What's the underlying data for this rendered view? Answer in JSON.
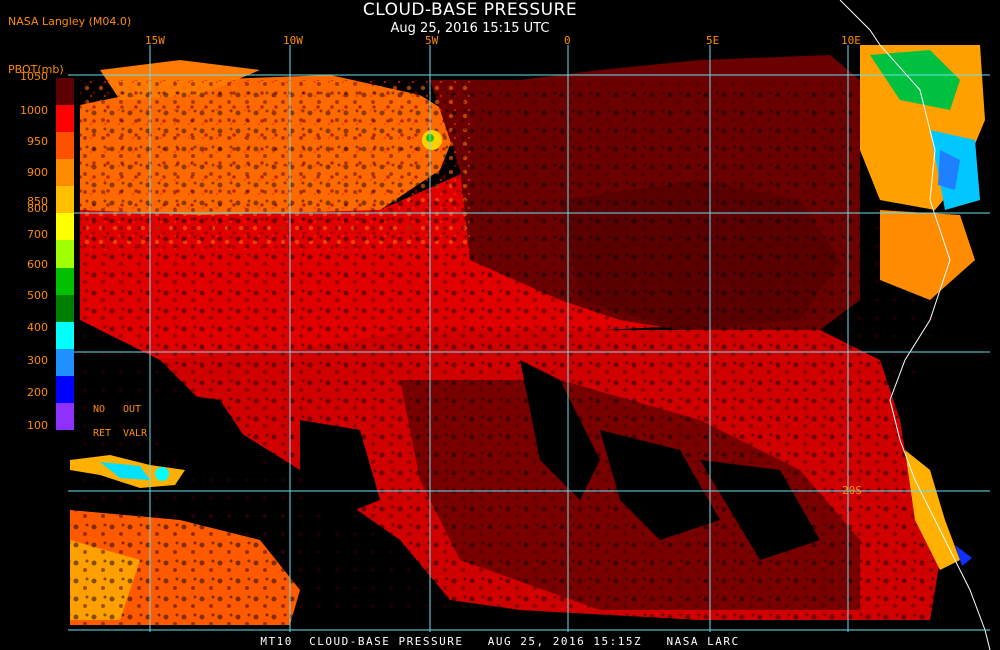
{
  "header": {
    "title": "CLOUD-BASE PRESSURE",
    "subtitle": "Aug 25, 2016 15:15 UTC",
    "producer": "NASA Langley (M04.0)"
  },
  "map": {
    "lon_labels": [
      "15W",
      "10W",
      "5W",
      "0",
      "5E",
      "10E"
    ],
    "lat_labels": [
      "20S"
    ],
    "region": "South Atlantic / Southwest Africa coast"
  },
  "legend": {
    "title": "PBOT(mb)",
    "ticks": [
      "1050",
      "1000",
      "950",
      "900",
      "850",
      "800",
      "700",
      "600",
      "500",
      "400",
      "300",
      "200",
      "100"
    ],
    "colors": [
      "#5a0000",
      "#ff0000",
      "#ff5000",
      "#ff8c00",
      "#ffbf00",
      "#ffff00",
      "#a0ff00",
      "#00c000",
      "#008000",
      "#00ffff",
      "#1e90ff",
      "#0000ff",
      "#9030ff"
    ],
    "notes": {
      "no": "NO",
      "out": "OUT",
      "ret": "RET",
      "valr": "VALR"
    }
  },
  "footer": {
    "text": "MT10  CLOUD-BASE PRESSURE   AUG 25, 2016 15:15Z   NASA LARC"
  }
}
